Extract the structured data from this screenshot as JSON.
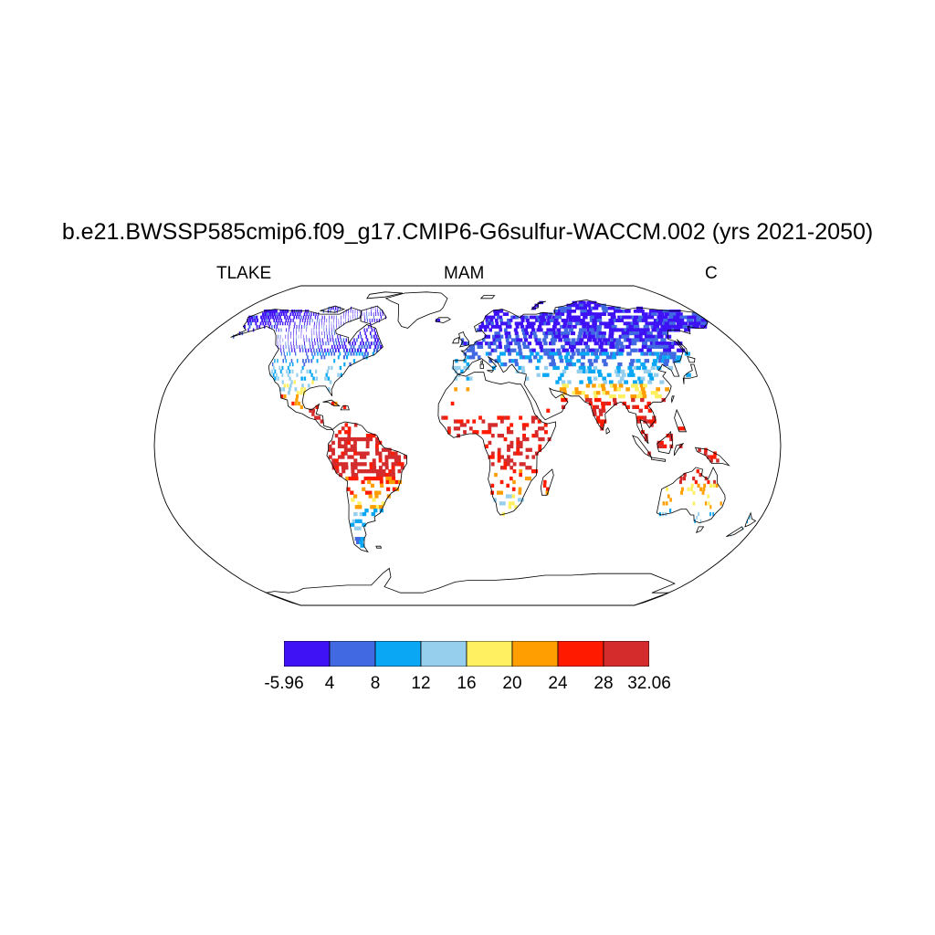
{
  "header": {
    "title": "b.e21.BWSSP585cmip6.f09_g17.CMIP6-G6sulfur-WACCM.002 (yrs 2021-2050)",
    "left_label": "TLAKE",
    "center_label": "MAM",
    "right_label": "C"
  },
  "colorbar": {
    "colors": [
      "#3f12f5",
      "#4169e1",
      "#0aa7f5",
      "#96cfee",
      "#fff062",
      "#ff9e00",
      "#ff1a00",
      "#d42c2c"
    ],
    "labels": [
      "-5.96",
      "4",
      "8",
      "12",
      "16",
      "20",
      "24",
      "28",
      "32.06"
    ]
  },
  "map": {
    "projection": "Robinson",
    "variable_field_regions": [
      {
        "region": "Canada & Alaska",
        "bin": 0
      },
      {
        "region": "Northern USA",
        "bin": 1
      },
      {
        "region": "Eastern USA",
        "bin": 2
      },
      {
        "region": "Mexico & Central America",
        "bin": 6
      },
      {
        "region": "Amazon basin",
        "bin": 7
      },
      {
        "region": "Southern South America",
        "bin": 2
      },
      {
        "region": "Scandinavia & Russia",
        "bin": 0
      },
      {
        "region": "Europe",
        "bin": 1
      },
      {
        "region": "Central Asia",
        "bin": 2
      },
      {
        "region": "South Asia",
        "bin": 6
      },
      {
        "region": "Sahel & Central Africa",
        "bin": 7
      },
      {
        "region": "Southern Africa",
        "bin": 6
      },
      {
        "region": "Australia",
        "bin": 5
      },
      {
        "region": "Maritime Southeast Asia",
        "bin": 7
      }
    ]
  }
}
